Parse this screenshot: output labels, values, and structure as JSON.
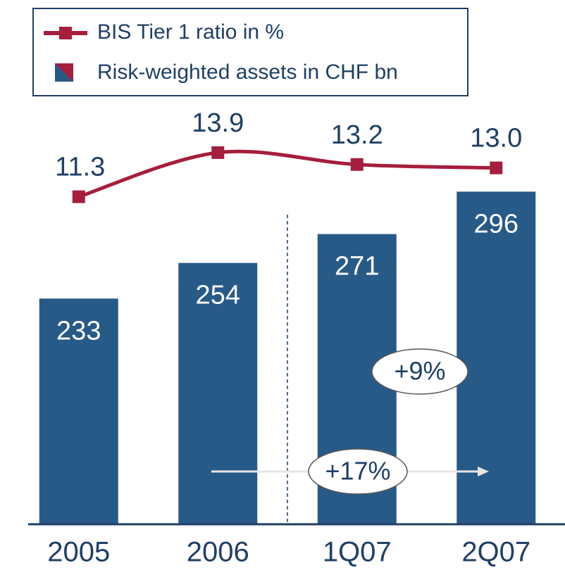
{
  "chart_data": {
    "type": "bar",
    "categories": [
      "2005",
      "2006",
      "1Q07",
      "2Q07"
    ],
    "series": [
      {
        "name": "Risk-weighted assets in CHF bn",
        "type": "bar",
        "color": "#285a88",
        "values": [
          233,
          254,
          271,
          296
        ]
      },
      {
        "name": "BIS Tier 1 ratio in %",
        "type": "line",
        "axis": "y2",
        "color": "#a51e3c",
        "values": [
          11.3,
          13.9,
          13.2,
          13.0
        ],
        "value_labels": [
          "11.3",
          "13.9",
          "13.2",
          "13.0"
        ]
      }
    ],
    "annotations": [
      "+9%",
      "+17%"
    ],
    "ylim": [
      100,
      360
    ],
    "y2lim": [
      -8,
      18
    ],
    "legend": "top-left"
  }
}
